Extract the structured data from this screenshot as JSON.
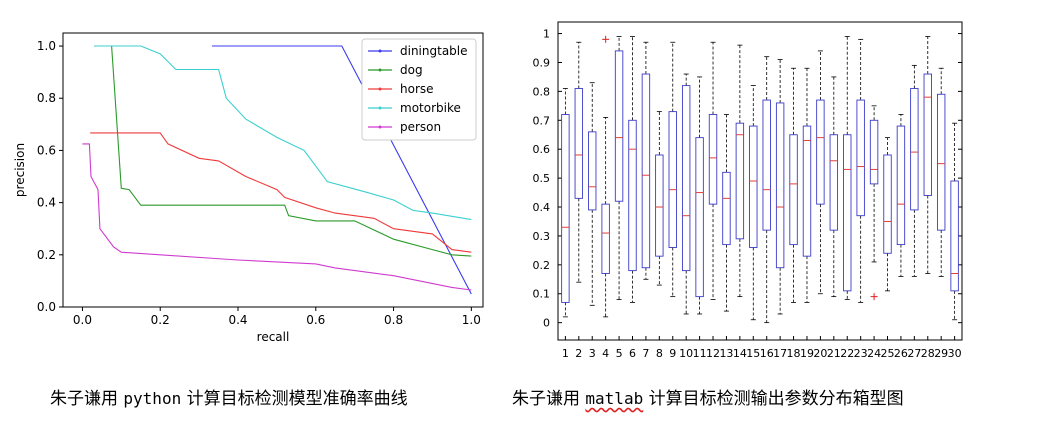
{
  "chart_data": [
    {
      "type": "line",
      "xlabel": "recall",
      "ylabel": "precision",
      "xlim": [
        -0.05,
        1.03
      ],
      "ylim": [
        0.0,
        1.05
      ],
      "xticks": [
        0.0,
        0.2,
        0.4,
        0.6,
        0.8,
        1.0
      ],
      "yticks": [
        0.0,
        0.2,
        0.4,
        0.6,
        0.8,
        1.0
      ],
      "xtick_labels": [
        "0.0",
        "0.2",
        "0.4",
        "0.6",
        "0.8",
        "1.0"
      ],
      "ytick_labels": [
        "0.0",
        "0.2",
        "0.4",
        "0.6",
        "0.8",
        "1.0"
      ],
      "grid": false,
      "legend": "top-right",
      "series": [
        {
          "name": "diningtable",
          "color": "#3b3bef",
          "x": [
            0.333,
            0.667,
            1.0
          ],
          "y": [
            1.0,
            1.0,
            0.05
          ]
        },
        {
          "name": "dog",
          "color": "#2a9a2a",
          "x": [
            0.03,
            0.075,
            0.1,
            0.12,
            0.15,
            0.35,
            0.52,
            0.53,
            0.6,
            0.7,
            0.8,
            0.9,
            0.95,
            1.0
          ],
          "y": [
            1.0,
            1.0,
            0.455,
            0.45,
            0.39,
            0.39,
            0.39,
            0.35,
            0.33,
            0.33,
            0.26,
            0.22,
            0.2,
            0.195
          ]
        },
        {
          "name": "horse",
          "color": "#ef3b3b",
          "x": [
            0.02,
            0.2,
            0.22,
            0.3,
            0.35,
            0.42,
            0.5,
            0.52,
            0.6,
            0.65,
            0.75,
            0.8,
            0.9,
            0.95,
            1.0
          ],
          "y": [
            0.667,
            0.667,
            0.625,
            0.57,
            0.56,
            0.5,
            0.45,
            0.42,
            0.38,
            0.36,
            0.34,
            0.3,
            0.28,
            0.22,
            0.21
          ]
        },
        {
          "name": "motorbike",
          "color": "#3bcfcf",
          "x": [
            0.03,
            0.15,
            0.2,
            0.24,
            0.35,
            0.37,
            0.42,
            0.5,
            0.57,
            0.63,
            0.73,
            0.8,
            0.85,
            0.9,
            1.0
          ],
          "y": [
            1.0,
            1.0,
            0.97,
            0.91,
            0.91,
            0.8,
            0.72,
            0.65,
            0.6,
            0.48,
            0.44,
            0.41,
            0.37,
            0.36,
            0.335
          ]
        },
        {
          "name": "person",
          "color": "#cf3bcf",
          "x": [
            0.0,
            0.018,
            0.022,
            0.04,
            0.045,
            0.08,
            0.1,
            0.2,
            0.4,
            0.6,
            0.65,
            0.8,
            0.95,
            1.0
          ],
          "y": [
            0.625,
            0.625,
            0.5,
            0.45,
            0.3,
            0.23,
            0.21,
            0.2,
            0.18,
            0.165,
            0.15,
            0.12,
            0.075,
            0.065
          ]
        }
      ]
    },
    {
      "type": "box",
      "categories": [
        "1",
        "2",
        "3",
        "4",
        "5",
        "6",
        "7",
        "8",
        "9",
        "10",
        "11",
        "12",
        "13",
        "14",
        "15",
        "16",
        "17",
        "18",
        "19",
        "20",
        "21",
        "22",
        "23",
        "24",
        "25",
        "26",
        "27",
        "28",
        "29",
        "30"
      ],
      "ylim": [
        -0.06,
        1.04
      ],
      "yticks": [
        0,
        0.1,
        0.2,
        0.3,
        0.4,
        0.5,
        0.6,
        0.7,
        0.8,
        0.9,
        1
      ],
      "ytick_labels": [
        "0",
        "0.1",
        "0.2",
        "0.3",
        "0.4",
        "0.5",
        "0.6",
        "0.7",
        "0.8",
        "0.9",
        "1"
      ],
      "grid": false,
      "colors": {
        "box": "#3c3cc8",
        "median": "#e0403a",
        "whisker": "#000000",
        "outlier": "#e02020"
      },
      "boxes": [
        {
          "min": 0.02,
          "q1": 0.07,
          "median": 0.33,
          "q3": 0.72,
          "max": 0.81
        },
        {
          "min": 0.14,
          "q1": 0.43,
          "median": 0.58,
          "q3": 0.81,
          "max": 0.97
        },
        {
          "min": 0.06,
          "q1": 0.39,
          "median": 0.47,
          "q3": 0.66,
          "max": 0.83
        },
        {
          "min": 0.02,
          "q1": 0.17,
          "median": 0.31,
          "q3": 0.41,
          "max": 0.71,
          "outliers": [
            0.98
          ]
        },
        {
          "min": 0.08,
          "q1": 0.42,
          "median": 0.64,
          "q3": 0.94,
          "max": 0.99
        },
        {
          "min": 0.07,
          "q1": 0.18,
          "median": 0.6,
          "q3": 0.7,
          "max": 0.99
        },
        {
          "min": 0.15,
          "q1": 0.19,
          "median": 0.51,
          "q3": 0.86,
          "max": 0.97
        },
        {
          "min": 0.13,
          "q1": 0.23,
          "median": 0.4,
          "q3": 0.58,
          "max": 0.73
        },
        {
          "min": 0.09,
          "q1": 0.26,
          "median": 0.46,
          "q3": 0.73,
          "max": 0.97
        },
        {
          "min": 0.03,
          "q1": 0.18,
          "median": 0.37,
          "q3": 0.82,
          "max": 0.86
        },
        {
          "min": 0.03,
          "q1": 0.09,
          "median": 0.45,
          "q3": 0.64,
          "max": 0.85
        },
        {
          "min": 0.08,
          "q1": 0.41,
          "median": 0.57,
          "q3": 0.72,
          "max": 0.97
        },
        {
          "min": 0.04,
          "q1": 0.27,
          "median": 0.43,
          "q3": 0.52,
          "max": 0.72
        },
        {
          "min": 0.09,
          "q1": 0.29,
          "median": 0.65,
          "q3": 0.69,
          "max": 0.96
        },
        {
          "min": 0.01,
          "q1": 0.26,
          "median": 0.49,
          "q3": 0.68,
          "max": 0.82
        },
        {
          "min": 0.0,
          "q1": 0.32,
          "median": 0.46,
          "q3": 0.77,
          "max": 0.92
        },
        {
          "min": 0.03,
          "q1": 0.19,
          "median": 0.4,
          "q3": 0.76,
          "max": 0.91
        },
        {
          "min": 0.07,
          "q1": 0.27,
          "median": 0.48,
          "q3": 0.65,
          "max": 0.88
        },
        {
          "min": 0.07,
          "q1": 0.23,
          "median": 0.63,
          "q3": 0.68,
          "max": 0.88
        },
        {
          "min": 0.1,
          "q1": 0.41,
          "median": 0.64,
          "q3": 0.77,
          "max": 0.94
        },
        {
          "min": 0.09,
          "q1": 0.32,
          "median": 0.56,
          "q3": 0.65,
          "max": 0.85
        },
        {
          "min": 0.08,
          "q1": 0.11,
          "median": 0.53,
          "q3": 0.65,
          "max": 0.99
        },
        {
          "min": 0.07,
          "q1": 0.37,
          "median": 0.54,
          "q3": 0.77,
          "max": 0.98
        },
        {
          "min": 0.21,
          "q1": 0.48,
          "median": 0.53,
          "q3": 0.7,
          "max": 0.75,
          "outliers": [
            0.09
          ]
        },
        {
          "min": 0.11,
          "q1": 0.24,
          "median": 0.35,
          "q3": 0.58,
          "max": 0.64
        },
        {
          "min": 0.16,
          "q1": 0.27,
          "median": 0.41,
          "q3": 0.68,
          "max": 0.72
        },
        {
          "min": 0.16,
          "q1": 0.39,
          "median": 0.59,
          "q3": 0.81,
          "max": 0.89
        },
        {
          "min": 0.17,
          "q1": 0.44,
          "median": 0.78,
          "q3": 0.86,
          "max": 0.99
        },
        {
          "min": 0.16,
          "q1": 0.32,
          "median": 0.55,
          "q3": 0.79,
          "max": 0.88
        },
        {
          "min": 0.01,
          "q1": 0.11,
          "median": 0.17,
          "q3": 0.49,
          "max": 0.69
        }
      ]
    }
  ],
  "captions": {
    "left_prefix": "朱子谦用 ",
    "left_code": "python",
    "left_suffix": " 计算目标检测模型准确率曲线",
    "right_prefix": "朱子谦用 ",
    "right_code": "matlab",
    "right_suffix": " 计算目标检测输出参数分布箱型图"
  }
}
